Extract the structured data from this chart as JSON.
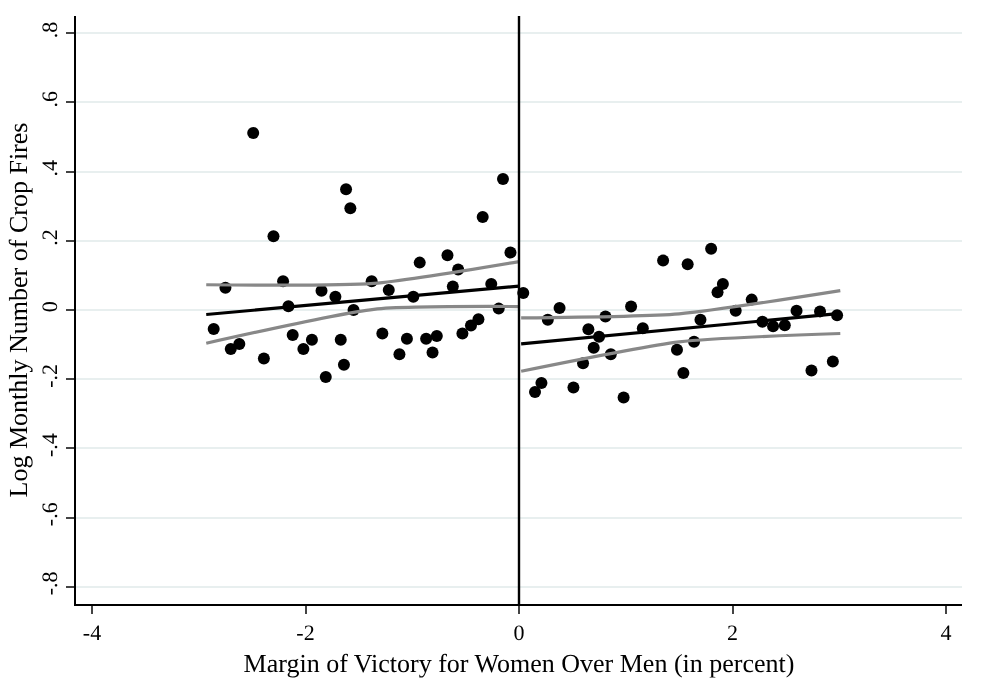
{
  "chart_data": {
    "type": "scatter",
    "xlabel": "Margin of Victory for Women Over Men (in percent)",
    "ylabel": "Log Monthly Number of Crop Fires",
    "xlim": [
      -4.15,
      4.15
    ],
    "ylim": [
      -0.85,
      0.85
    ],
    "xticks": [
      -4,
      -2,
      0,
      2,
      4
    ],
    "yticks": [
      {
        "value": -0.8,
        "label": "-.8"
      },
      {
        "value": -0.6,
        "label": "-.6"
      },
      {
        "value": -0.4,
        "label": "-.4"
      },
      {
        "value": -0.2,
        "label": "-.2"
      },
      0,
      {
        "value": 0.2,
        "label": ".2"
      },
      {
        "value": 0.4,
        "label": ".4"
      },
      {
        "value": 0.6,
        "label": ".6"
      },
      {
        "value": 0.8,
        "label": ".8"
      }
    ],
    "grid": "y",
    "ref_lines": [
      {
        "axis": "x",
        "value": 0,
        "color": "#000000"
      }
    ],
    "series": [
      {
        "color": "#000000",
        "marker": "circle",
        "x": [
          -2.86,
          -2.75,
          -2.7,
          -2.62,
          -2.49,
          -2.39,
          -2.3,
          -2.21,
          -2.16,
          -2.12,
          -2.02,
          -1.94,
          -1.85,
          -1.81,
          -1.72,
          -1.67,
          -1.64,
          -1.62,
          -1.58,
          -1.55,
          -1.38,
          -1.28,
          -1.22,
          -1.12,
          -1.05,
          -0.99,
          -0.93,
          -0.87,
          -0.81,
          -0.77,
          -0.67,
          -0.62,
          -0.57,
          -0.53,
          -0.45,
          -0.38,
          -0.34,
          -0.26,
          -0.19,
          -0.15,
          -0.08,
          0.04,
          0.15,
          0.21,
          0.27,
          0.38,
          0.51,
          0.6,
          0.65,
          0.7,
          0.75,
          0.81,
          0.86,
          0.98,
          1.05,
          1.16,
          1.35,
          1.48,
          1.54,
          1.58,
          1.64,
          1.7,
          1.8,
          1.86,
          1.91,
          2.03,
          2.18,
          2.28,
          2.38,
          2.49,
          2.6,
          2.74,
          2.82,
          2.94,
          2.98
        ],
        "values": [
          -0.055,
          0.064,
          -0.113,
          -0.098,
          0.512,
          -0.14,
          0.213,
          0.083,
          0.011,
          -0.072,
          -0.113,
          -0.086,
          0.056,
          -0.194,
          0.038,
          -0.086,
          -0.158,
          0.349,
          0.294,
          0.0,
          0.083,
          -0.068,
          0.058,
          -0.128,
          -0.083,
          0.038,
          0.137,
          -0.083,
          -0.123,
          -0.075,
          0.158,
          0.068,
          0.117,
          -0.068,
          -0.045,
          -0.027,
          0.269,
          0.075,
          0.004,
          0.379,
          0.166,
          0.049,
          -0.237,
          -0.211,
          -0.028,
          0.006,
          -0.224,
          -0.154,
          -0.056,
          -0.109,
          -0.077,
          -0.019,
          -0.128,
          -0.253,
          0.01,
          -0.053,
          0.143,
          -0.115,
          -0.182,
          0.132,
          -0.092,
          -0.028,
          0.177,
          0.051,
          0.075,
          -0.002,
          0.03,
          -0.034,
          -0.047,
          -0.044,
          -0.002,
          -0.175,
          -0.004,
          -0.149,
          -0.015
        ]
      },
      {
        "type": "line",
        "color": "#000000",
        "marker": "none",
        "x": [
          -2.93,
          0
        ],
        "values": [
          -0.013,
          0.069
        ]
      },
      {
        "type": "line",
        "color": "#000000",
        "marker": "none",
        "x": [
          0.02,
          3.01
        ],
        "values": [
          -0.098,
          -0.01
        ]
      },
      {
        "type": "line",
        "color": "#888888",
        "marker": "none",
        "x": [
          -2.93,
          -1.36,
          0
        ],
        "values": [
          0.073,
          0.077,
          0.14
        ]
      },
      {
        "type": "line",
        "color": "#888888",
        "marker": "none",
        "x": [
          -2.93,
          -1.36,
          0
        ],
        "values": [
          -0.096,
          0.002,
          0.01
        ]
      },
      {
        "type": "line",
        "color": "#888888",
        "marker": "none",
        "x": [
          0.02,
          1.5,
          3.01
        ],
        "values": [
          -0.023,
          -0.011,
          0.056
        ]
      },
      {
        "type": "line",
        "color": "#888888",
        "marker": "none",
        "x": [
          0.02,
          1.5,
          3.01
        ],
        "values": [
          -0.177,
          -0.092,
          -0.068
        ]
      }
    ]
  }
}
